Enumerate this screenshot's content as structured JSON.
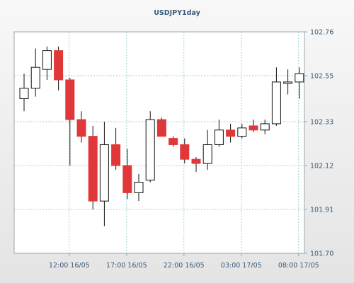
{
  "chart_data": {
    "type": "candlestick",
    "title": "USDJPY1day",
    "ylim": [
      101.7,
      102.76
    ],
    "y_ticks": [
      "102.76",
      "102.55",
      "102.33",
      "102.12",
      "101.91",
      "101.70"
    ],
    "x_ticks": [
      "12:00 16/05",
      "17:00 16/05",
      "22:00 16/05",
      "03:00 17/05",
      "08:00 17/05"
    ],
    "grid": true,
    "up_color": "#ffffff",
    "down_color": "#e03838",
    "candles": [
      {
        "open": 102.44,
        "high": 102.56,
        "low": 102.38,
        "close": 102.49
      },
      {
        "open": 102.49,
        "high": 102.68,
        "low": 102.45,
        "close": 102.59
      },
      {
        "open": 102.58,
        "high": 102.69,
        "low": 102.53,
        "close": 102.67
      },
      {
        "open": 102.67,
        "high": 102.69,
        "low": 102.48,
        "close": 102.53
      },
      {
        "open": 102.53,
        "high": 102.54,
        "low": 102.12,
        "close": 102.34
      },
      {
        "open": 102.34,
        "high": 102.38,
        "low": 102.23,
        "close": 102.26
      },
      {
        "open": 102.26,
        "high": 102.31,
        "low": 101.91,
        "close": 101.95
      },
      {
        "open": 101.95,
        "high": 102.33,
        "low": 101.83,
        "close": 102.22
      },
      {
        "open": 102.22,
        "high": 102.3,
        "low": 102.1,
        "close": 102.12
      },
      {
        "open": 102.12,
        "high": 102.2,
        "low": 101.96,
        "close": 101.99
      },
      {
        "open": 101.99,
        "high": 102.08,
        "low": 101.95,
        "close": 102.04
      },
      {
        "open": 102.05,
        "high": 102.38,
        "low": 102.04,
        "close": 102.34
      },
      {
        "open": 102.34,
        "high": 102.35,
        "low": 102.26,
        "close": 102.26
      },
      {
        "open": 102.25,
        "high": 102.26,
        "low": 102.21,
        "close": 102.22
      },
      {
        "open": 102.22,
        "high": 102.25,
        "low": 102.13,
        "close": 102.15
      },
      {
        "open": 102.15,
        "high": 102.16,
        "low": 102.09,
        "close": 102.13
      },
      {
        "open": 102.13,
        "high": 102.29,
        "low": 102.1,
        "close": 102.22
      },
      {
        "open": 102.22,
        "high": 102.34,
        "low": 102.21,
        "close": 102.29
      },
      {
        "open": 102.29,
        "high": 102.32,
        "low": 102.23,
        "close": 102.26
      },
      {
        "open": 102.26,
        "high": 102.32,
        "low": 102.25,
        "close": 102.3
      },
      {
        "open": 102.31,
        "high": 102.34,
        "low": 102.28,
        "close": 102.29
      },
      {
        "open": 102.29,
        "high": 102.34,
        "low": 102.27,
        "close": 102.32
      },
      {
        "open": 102.32,
        "high": 102.59,
        "low": 102.31,
        "close": 102.52
      },
      {
        "open": 102.52,
        "high": 102.58,
        "low": 102.46,
        "close": 102.52
      },
      {
        "open": 102.52,
        "high": 102.59,
        "low": 102.44,
        "close": 102.56
      }
    ]
  }
}
